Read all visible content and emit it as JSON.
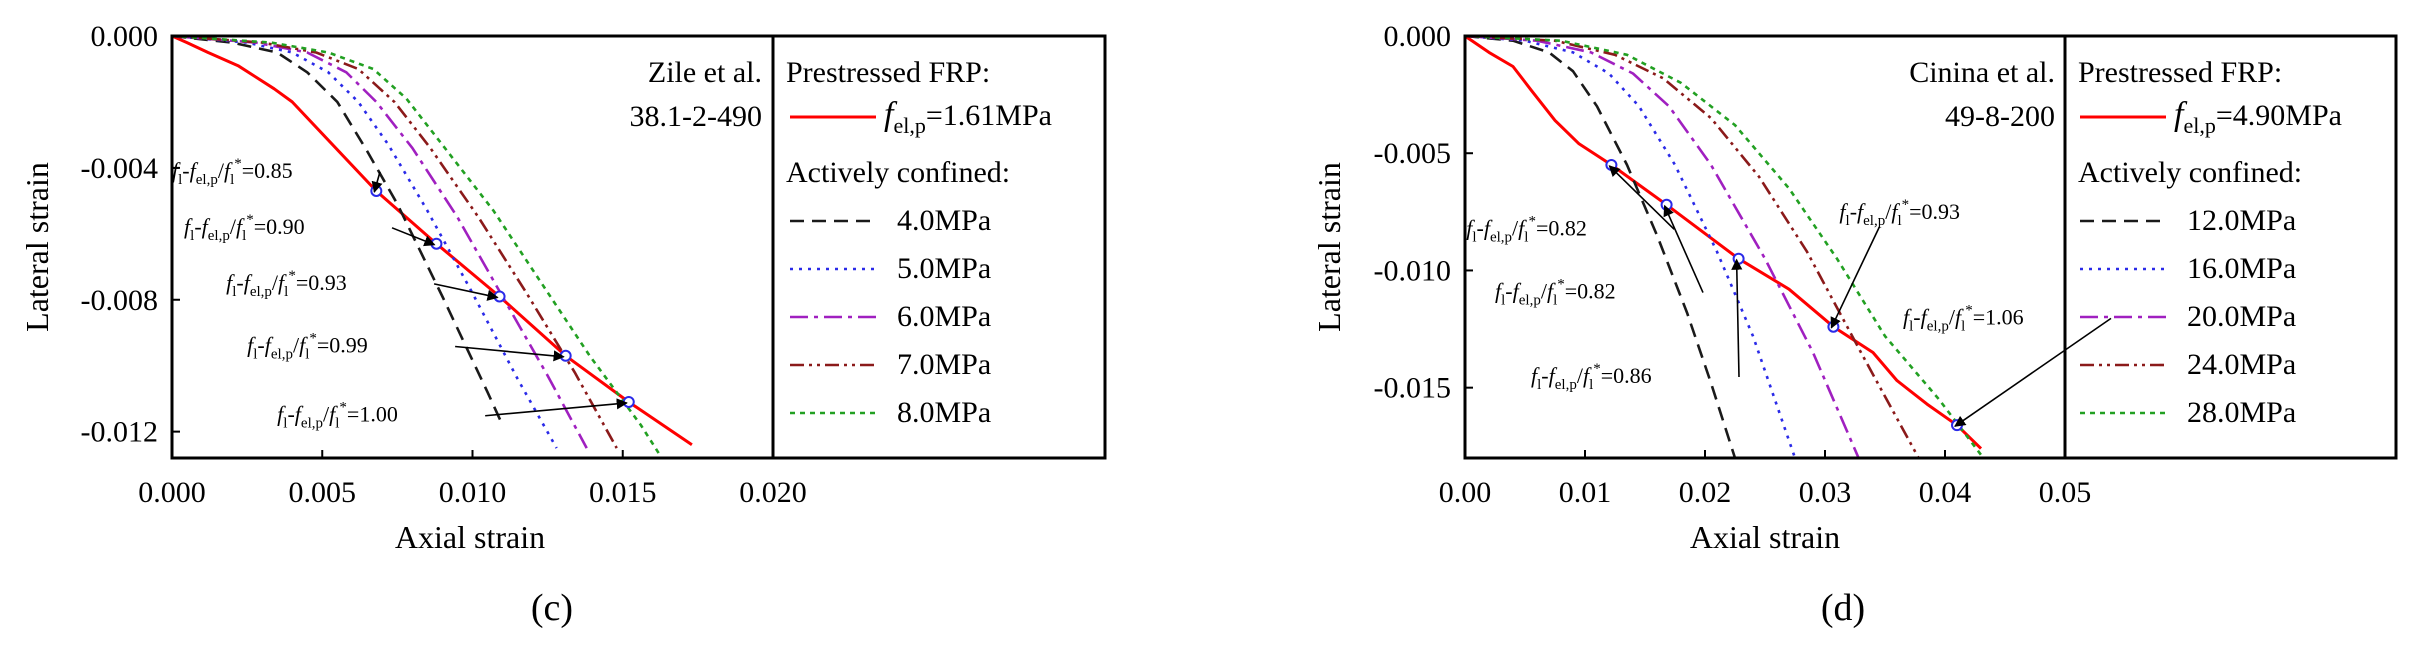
{
  "chart_data": [
    {
      "type": "line",
      "panel_label": "(c)",
      "xlabel": "Axial strain",
      "ylabel": "Lateral strain",
      "xlim": [
        0,
        0.02
      ],
      "ylim": [
        -0.0128,
        0
      ],
      "xticks": [
        0,
        0.005,
        0.01,
        0.015,
        0.02
      ],
      "xtick_labels": [
        "0.000",
        "0.005",
        "0.010",
        "0.015",
        "0.020"
      ],
      "yticks": [
        0,
        -0.004,
        -0.008,
        -0.012
      ],
      "ytick_labels": [
        "0.000",
        "-0.004",
        "-0.008",
        "-0.012"
      ],
      "reference": [
        "Zile et al.",
        "38.1-2-490"
      ],
      "legend": {
        "heading1": "Prestressed FRP:",
        "frp_symbol": "f",
        "frp_subscript": "el,p",
        "frp_value": "=1.61MPa",
        "heading2": "Actively confined:"
      },
      "series": [
        {
          "name": "f_el,p=1.61MPa",
          "color": "#ff0000",
          "dash": "solid",
          "x": [
            0,
            0.0005,
            0.0012,
            0.0022,
            0.0034,
            0.004,
            0.0068,
            0.0088,
            0.0109,
            0.0131,
            0.0152,
            0.0173
          ],
          "y": [
            0,
            -0.0002,
            -0.0005,
            -0.0009,
            -0.0016,
            -0.002,
            -0.0047,
            -0.0063,
            -0.0079,
            -0.0097,
            -0.0111,
            -0.0124
          ]
        },
        {
          "name": "4.0MPa",
          "color": "#1a1a1a",
          "dash": "14,8",
          "x": [
            0,
            0.002,
            0.0035,
            0.0045,
            0.0055,
            0.0065,
            0.0075,
            0.009,
            0.0105,
            0.011
          ],
          "y": [
            0,
            -0.0002,
            -0.0005,
            -0.0011,
            -0.002,
            -0.0035,
            -0.0051,
            -0.0079,
            -0.0108,
            -0.0118
          ]
        },
        {
          "name": "5.0MPa",
          "color": "#2a2ae8",
          "dash": "3,6",
          "x": [
            0,
            0.0025,
            0.004,
            0.0052,
            0.0062,
            0.0072,
            0.0085,
            0.01,
            0.0115,
            0.0128
          ],
          "y": [
            0,
            -0.0002,
            -0.0005,
            -0.0011,
            -0.002,
            -0.0033,
            -0.0053,
            -0.0078,
            -0.0104,
            -0.0125
          ]
        },
        {
          "name": "6.0MPa",
          "color": "#a020c0",
          "dash": "18,6,4,6",
          "x": [
            0,
            0.0028,
            0.0045,
            0.0058,
            0.0068,
            0.008,
            0.0095,
            0.011,
            0.0125,
            0.0138
          ],
          "y": [
            0,
            -0.0002,
            -0.0005,
            -0.0011,
            -0.002,
            -0.0034,
            -0.0055,
            -0.0079,
            -0.0103,
            -0.0125
          ]
        },
        {
          "name": "7.0MPa",
          "color": "#8b1a1a",
          "dash": "14,5,3,5,3,5",
          "x": [
            0,
            0.003,
            0.0048,
            0.0062,
            0.0074,
            0.0086,
            0.0102,
            0.0118,
            0.0134,
            0.0148
          ],
          "y": [
            0,
            -0.0002,
            -0.0005,
            -0.001,
            -0.002,
            -0.0034,
            -0.0055,
            -0.0078,
            -0.0102,
            -0.0125
          ]
        },
        {
          "name": "8.0MPa",
          "color": "#22a022",
          "dash": "5,5",
          "x": [
            0,
            0.0033,
            0.0052,
            0.0067,
            0.0078,
            0.009,
            0.0107,
            0.0123,
            0.0139,
            0.0156,
            0.0163
          ],
          "y": [
            0,
            -0.0002,
            -0.0005,
            -0.001,
            -0.0019,
            -0.0033,
            -0.0053,
            -0.0075,
            -0.0097,
            -0.0118,
            -0.0128
          ]
        }
      ],
      "markers": [
        {
          "x": 0.0068,
          "y": -0.0047
        },
        {
          "x": 0.0088,
          "y": -0.0063
        },
        {
          "x": 0.0109,
          "y": -0.0079
        },
        {
          "x": 0.0131,
          "y": -0.0097
        },
        {
          "x": 0.0152,
          "y": -0.0111
        }
      ],
      "annotations": [
        {
          "value": "=0.85",
          "tx": 0.0,
          "ty": -0.0043,
          "px": 0.0068,
          "py": -0.0047
        },
        {
          "value": "=0.90",
          "tx": 0.0004,
          "ty": -0.006,
          "px": 0.0088,
          "py": -0.0063
        },
        {
          "value": "=0.93",
          "tx": 0.0018,
          "ty": -0.0077,
          "px": 0.0109,
          "py": -0.0079
        },
        {
          "value": "=0.99",
          "tx": 0.0025,
          "ty": -0.0096,
          "px": 0.0131,
          "py": -0.0097
        },
        {
          "value": "=1.00",
          "tx": 0.0035,
          "ty": -0.0117,
          "px": 0.0152,
          "py": -0.0111
        }
      ]
    },
    {
      "type": "line",
      "panel_label": "(d)",
      "xlabel": "Axial strain",
      "ylabel": "Lateral strain",
      "xlim": [
        0,
        0.05
      ],
      "ylim": [
        -0.018,
        0
      ],
      "xticks": [
        0,
        0.01,
        0.02,
        0.03,
        0.04,
        0.05
      ],
      "xtick_labels": [
        "0.00",
        "0.01",
        "0.02",
        "0.03",
        "0.04",
        "0.05"
      ],
      "yticks": [
        0,
        -0.005,
        -0.01,
        -0.015
      ],
      "ytick_labels": [
        "0.000",
        "-0.005",
        "-0.010",
        "-0.015"
      ],
      "reference": [
        "Cinina et al.",
        "49-8-200"
      ],
      "legend": {
        "heading1": "Prestressed FRP:",
        "frp_symbol": "f",
        "frp_subscript": "el,p",
        "frp_value": "=4.90MPa",
        "heading2": "Actively confined:"
      },
      "series": [
        {
          "name": "f_el,p=4.90MPa",
          "color": "#ff0000",
          "dash": "solid",
          "x": [
            0,
            0.002,
            0.004,
            0.0055,
            0.0075,
            0.0095,
            0.0122,
            0.0168,
            0.0228,
            0.027,
            0.0307,
            0.034,
            0.036,
            0.0385,
            0.041,
            0.043
          ],
          "y": [
            0,
            -0.0007,
            -0.0013,
            -0.0023,
            -0.0036,
            -0.0046,
            -0.0055,
            -0.0072,
            -0.0095,
            -0.0108,
            -0.0124,
            -0.0135,
            -0.0147,
            -0.0157,
            -0.0166,
            -0.0176
          ]
        },
        {
          "name": "12.0MPa",
          "color": "#1a1a1a",
          "dash": "14,8",
          "x": [
            0,
            0.004,
            0.007,
            0.009,
            0.011,
            0.0135,
            0.016,
            0.0185,
            0.0205,
            0.0225
          ],
          "y": [
            0,
            -0.0002,
            -0.0007,
            -0.0015,
            -0.003,
            -0.0055,
            -0.0085,
            -0.0118,
            -0.0148,
            -0.018
          ]
        },
        {
          "name": "16.0MPa",
          "color": "#2a2ae8",
          "dash": "3,6",
          "x": [
            0,
            0.005,
            0.009,
            0.012,
            0.0145,
            0.0175,
            0.021,
            0.024,
            0.0275
          ],
          "y": [
            0,
            -0.0002,
            -0.0007,
            -0.0016,
            -0.003,
            -0.0055,
            -0.0092,
            -0.0128,
            -0.018
          ]
        },
        {
          "name": "20.0MPa",
          "color": "#a020c0",
          "dash": "18,6,4,6",
          "x": [
            0,
            0.006,
            0.0105,
            0.014,
            0.017,
            0.0205,
            0.025,
            0.029,
            0.0328
          ],
          "y": [
            0,
            -0.0002,
            -0.0007,
            -0.0016,
            -0.003,
            -0.0055,
            -0.0095,
            -0.0135,
            -0.018
          ]
        },
        {
          "name": "24.0MPa",
          "color": "#8b1a1a",
          "dash": "14,5,3,5,3,5",
          "x": [
            0,
            0.0075,
            0.0125,
            0.0165,
            0.0205,
            0.0245,
            0.0285,
            0.033,
            0.0378
          ],
          "y": [
            0,
            -0.0002,
            -0.0008,
            -0.0018,
            -0.0035,
            -0.006,
            -0.0092,
            -0.0135,
            -0.018
          ]
        },
        {
          "name": "28.0MPa",
          "color": "#22a022",
          "dash": "5,5",
          "x": [
            0,
            0.008,
            0.0135,
            0.018,
            0.0225,
            0.027,
            0.031,
            0.035,
            0.0395,
            0.0432
          ],
          "y": [
            0,
            -0.0002,
            -0.0008,
            -0.002,
            -0.0038,
            -0.0065,
            -0.0095,
            -0.0128,
            -0.0155,
            -0.018
          ]
        }
      ],
      "markers": [
        {
          "x": 0.0122,
          "y": -0.0055
        },
        {
          "x": 0.0168,
          "y": -0.0072
        },
        {
          "x": 0.0228,
          "y": -0.0095
        },
        {
          "x": 0.0307,
          "y": -0.0124
        },
        {
          "x": 0.041,
          "y": -0.0166
        }
      ],
      "annotations": [
        {
          "value": "=0.82",
          "tx": 0.0001,
          "ty": -0.0085,
          "px": 0.0122,
          "py": -0.0055
        },
        {
          "value": "=0.82",
          "tx": 0.0025,
          "ty": -0.0112,
          "px": 0.0168,
          "py": -0.0072
        },
        {
          "value": "=0.86",
          "tx": 0.0055,
          "ty": -0.0148,
          "px": 0.0228,
          "py": -0.0095
        },
        {
          "value": "=0.93",
          "tx": 0.0312,
          "ty": -0.0078,
          "px": 0.0307,
          "py": -0.0124
        },
        {
          "value": "=1.06",
          "tx": 0.0365,
          "ty": -0.0123,
          "px": 0.041,
          "py": -0.0166
        }
      ]
    }
  ]
}
